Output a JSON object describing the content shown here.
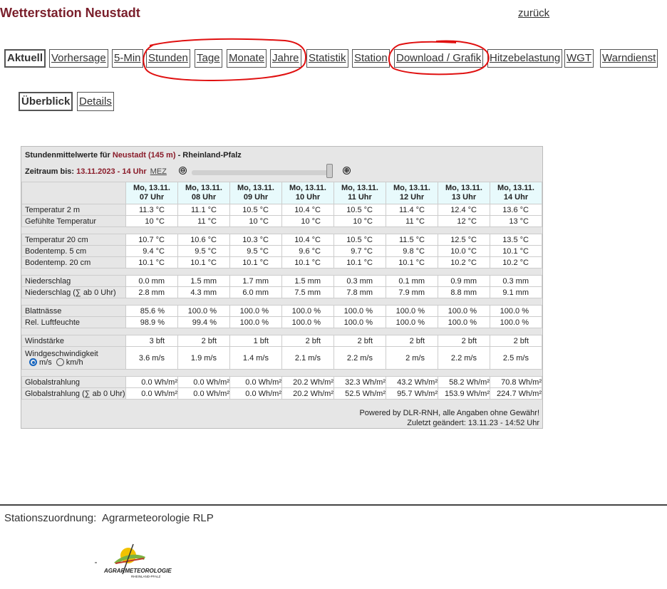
{
  "page": {
    "title": "Wetterstation Neustadt",
    "back_link": "zurück"
  },
  "nav": {
    "tabs": [
      {
        "label": "Aktuell",
        "active": true
      },
      {
        "label": "Vorhersage"
      },
      {
        "label": "5-Min"
      },
      {
        "label": "Stunden"
      },
      {
        "label": "Tage"
      },
      {
        "label": "Monate"
      },
      {
        "label": "Jahre"
      },
      {
        "label": "Statistik"
      },
      {
        "label": "Station"
      },
      {
        "label": "Download / Grafik"
      },
      {
        "label": "Hitzebelastung"
      },
      {
        "label": "WGT"
      },
      {
        "label": "Warndienst"
      }
    ],
    "subtabs": [
      {
        "label": "Überblick",
        "active": true
      },
      {
        "label": "Details"
      }
    ]
  },
  "panel": {
    "title_prefix": "Stundenmittelwerte für",
    "station": "Neustadt (145 m)",
    "title_suffix": "- Rheinland-Pfalz",
    "period_label": "Zeitraum bis:",
    "period_value": "13.11.2023 - 14 Uhr",
    "timezone": "MEZ",
    "zoom_out": "⊖",
    "zoom_in": "⊕",
    "columns": [
      [
        "Mo, 13.11.",
        "07 Uhr"
      ],
      [
        "Mo, 13.11.",
        "08 Uhr"
      ],
      [
        "Mo, 13.11.",
        "09 Uhr"
      ],
      [
        "Mo, 13.11.",
        "10 Uhr"
      ],
      [
        "Mo, 13.11.",
        "11 Uhr"
      ],
      [
        "Mo, 13.11.",
        "12 Uhr"
      ],
      [
        "Mo, 13.11.",
        "13 Uhr"
      ],
      [
        "Mo, 13.11.",
        "14 Uhr"
      ]
    ],
    "groups": [
      [
        {
          "label": "Temperatur 2 m",
          "values": [
            "11.3 °C",
            "11.1 °C",
            "10.5 °C",
            "10.4 °C",
            "10.5 °C",
            "11.4 °C",
            "12.4 °C",
            "13.6 °C"
          ]
        },
        {
          "label": "Gefühlte Temperatur",
          "values": [
            "10 °C",
            "11 °C",
            "10 °C",
            "10 °C",
            "10 °C",
            "11 °C",
            "12 °C",
            "13 °C"
          ]
        }
      ],
      [
        {
          "label": "Temperatur 20 cm",
          "values": [
            "10.7 °C",
            "10.6 °C",
            "10.3 °C",
            "10.4 °C",
            "10.5 °C",
            "11.5 °C",
            "12.5 °C",
            "13.5 °C"
          ]
        },
        {
          "label": "Bodentemp. 5 cm",
          "values": [
            "9.4 °C",
            "9.5 °C",
            "9.5 °C",
            "9.6 °C",
            "9.7 °C",
            "9.8 °C",
            "10.0 °C",
            "10.1 °C"
          ]
        },
        {
          "label": "Bodentemp. 20 cm",
          "values": [
            "10.1 °C",
            "10.1 °C",
            "10.1 °C",
            "10.1 °C",
            "10.1 °C",
            "10.1 °C",
            "10.2 °C",
            "10.2 °C"
          ]
        }
      ],
      [
        {
          "label": "Niederschlag",
          "values": [
            "0.0 mm",
            "1.5 mm",
            "1.7 mm",
            "1.5 mm",
            "0.3 mm",
            "0.1 mm",
            "0.9 mm",
            "0.3 mm"
          ]
        },
        {
          "label": "Niederschlag (∑ ab 0 Uhr)",
          "values": [
            "2.8 mm",
            "4.3 mm",
            "6.0 mm",
            "7.5 mm",
            "7.8 mm",
            "7.9 mm",
            "8.8 mm",
            "9.1 mm"
          ]
        }
      ],
      [
        {
          "label": "Blattnässe",
          "values": [
            "85.6 %",
            "100.0 %",
            "100.0 %",
            "100.0 %",
            "100.0 %",
            "100.0 %",
            "100.0 %",
            "100.0 %"
          ]
        },
        {
          "label": "Rel. Luftfeuchte",
          "values": [
            "98.9 %",
            "99.4 %",
            "100.0 %",
            "100.0 %",
            "100.0 %",
            "100.0 %",
            "100.0 %",
            "100.0 %"
          ]
        }
      ],
      [
        {
          "label": "Windstärke",
          "values": [
            "3 bft",
            "2 bft",
            "1 bft",
            "2 bft",
            "2 bft",
            "2 bft",
            "2 bft",
            "2 bft"
          ]
        },
        {
          "label": "Windgeschwindigkeit",
          "values": [
            "3.6 m/s",
            "1.9 m/s",
            "1.4 m/s",
            "2.1 m/s",
            "2.2 m/s",
            "2 m/s",
            "2.2 m/s",
            "2.5 m/s"
          ],
          "radio": [
            "m/s",
            "km/h"
          ]
        }
      ],
      [
        {
          "label": "Globalstrahlung",
          "values": [
            "0.0 Wh/m²",
            "0.0 Wh/m²",
            "0.0 Wh/m²",
            "20.2 Wh/m²",
            "32.3 Wh/m²",
            "43.2 Wh/m²",
            "58.2 Wh/m²",
            "70.8 Wh/m²"
          ],
          "tight": true
        },
        {
          "label": "Globalstrahlung (∑ ab 0 Uhr)",
          "values": [
            "0.0 Wh/m²",
            "0.0 Wh/m²",
            "0.0 Wh/m²",
            "20.2 Wh/m²",
            "52.5 Wh/m²",
            "95.7 Wh/m²",
            "153.9 Wh/m²",
            "224.7 Wh/m²"
          ],
          "tight": true
        }
      ]
    ],
    "footer_powered": "Powered by DLR-RNH, alle Angaben ohne Gewähr!",
    "footer_changed": "Zuletzt geändert: 13.11.23 - 14:52 Uhr"
  },
  "footer": {
    "station_label": "Stationszuordnung:",
    "station_value": "Agrarmeteorologie RLP",
    "logo_text_1": "AGRARMETEOROLOGIE",
    "logo_text_2": "RHEINLAND-PFALZ"
  },
  "colors": {
    "title": "#7a1f2b",
    "station": "#8a1c2a",
    "header_bg": "#e8fafc",
    "annotation": "#e01010"
  }
}
